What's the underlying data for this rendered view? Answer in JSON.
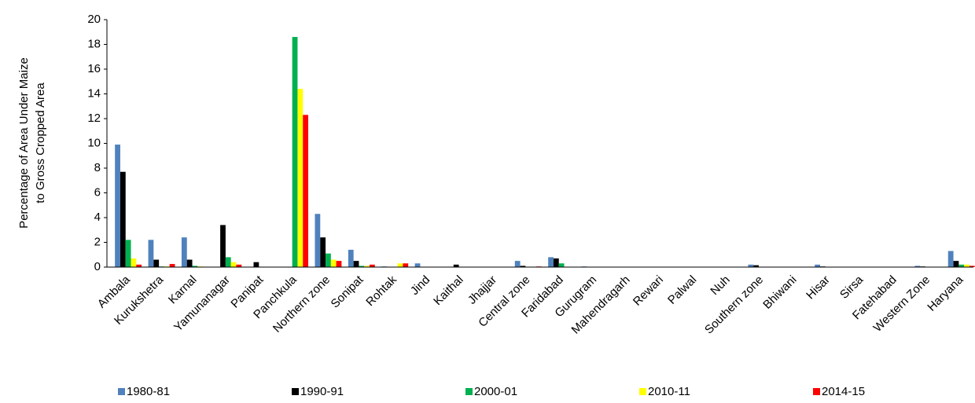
{
  "chart_data": {
    "type": "bar",
    "y_label": [
      "Percentage of Area Under Maize",
      "to Gross Cropped Area"
    ],
    "categories": [
      "Ambala",
      "Kurukshetra",
      "Karnal",
      "Yamunanagar",
      "Panipat",
      "Panchkula",
      "Northern zone",
      "Sonipat",
      "Rohtak",
      "Jind",
      "Kaithal",
      "Jhajjar",
      "Central zone",
      "Faridabad",
      "Gurugram",
      "Mahendragarh",
      "Rewari",
      "Palwal",
      "Nuh",
      "Southern zone",
      "Bhiwani",
      "Hisar",
      "Sirsa",
      "Fatehabad",
      "Western Zone",
      "Haryana"
    ],
    "series": [
      {
        "name": "1980-81",
        "color": "#4f81bd",
        "values": [
          9.9,
          2.2,
          2.4,
          0,
          0,
          0,
          4.3,
          1.4,
          0.05,
          0.3,
          0,
          0,
          0.5,
          0.8,
          0.05,
          0,
          0,
          0,
          0,
          0.2,
          0,
          0.2,
          0,
          0,
          0.1,
          1.3
        ]
      },
      {
        "name": "1990-91",
        "color": "#000000",
        "values": [
          7.7,
          0.6,
          0.6,
          3.4,
          0.4,
          0,
          2.4,
          0.5,
          0,
          0,
          0.2,
          0,
          0.1,
          0.7,
          0,
          0,
          0,
          0,
          0,
          0.15,
          0,
          0.05,
          0,
          0,
          0.05,
          0.5
        ]
      },
      {
        "name": "2000-01",
        "color": "#00b050",
        "values": [
          2.2,
          0.05,
          0.1,
          0.8,
          0,
          18.6,
          1.1,
          0.1,
          0,
          0,
          0,
          0,
          0,
          0.3,
          0,
          0,
          0,
          0,
          0,
          0,
          0,
          0,
          0,
          0,
          0,
          0.2
        ]
      },
      {
        "name": "2010-11",
        "color": "#ffff00",
        "values": [
          0.7,
          0.05,
          0.05,
          0.4,
          0,
          14.4,
          0.6,
          0.1,
          0.3,
          0,
          0,
          0,
          0,
          0,
          0,
          0,
          0,
          0,
          0,
          0,
          0,
          0,
          0,
          0,
          0,
          0.2
        ]
      },
      {
        "name": "2014-15",
        "color": "#ff0000",
        "values": [
          0.2,
          0.25,
          0,
          0.2,
          0,
          12.3,
          0.5,
          0.2,
          0.3,
          0,
          0,
          0,
          0.05,
          0,
          0,
          0,
          0,
          0,
          0,
          0,
          0,
          0,
          0,
          0,
          0,
          0.1
        ]
      }
    ],
    "ylim": [
      0,
      20
    ],
    "yticks": [
      0,
      2,
      4,
      6,
      8,
      10,
      12,
      14,
      16,
      18,
      20
    ],
    "grid": false
  }
}
